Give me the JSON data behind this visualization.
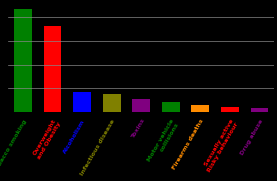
{
  "categories": [
    "Tobacco smoking",
    "Overweight\nand Obesity",
    "Alcoholism",
    "Infectious disease",
    "Toxins",
    "Motor vehicle\ncollisions",
    "Firearms deaths",
    "Sexually active\nRisky behaviour",
    "Drug abuse"
  ],
  "values": [
    435000,
    365000,
    85000,
    75000,
    55000,
    43000,
    29000,
    20000,
    17000
  ],
  "bar_colors": [
    "#008000",
    "#ff0000",
    "#0000ff",
    "#808000",
    "#800080",
    "#008000",
    "#ff8c00",
    "#ff0000",
    "#800080"
  ],
  "background_color": "#000000",
  "text_colors": [
    "#008000",
    "#ff0000",
    "#0000ff",
    "#808000",
    "#800080",
    "#008000",
    "#ff8c00",
    "#ff0000",
    "#800080"
  ],
  "ylim": [
    0,
    450000
  ],
  "yticks": [
    100000,
    200000,
    300000,
    400000
  ],
  "grid_color": "#888888",
  "tick_fontsize": 5.0,
  "label_fontsize": 4.5,
  "bar_width": 0.6
}
